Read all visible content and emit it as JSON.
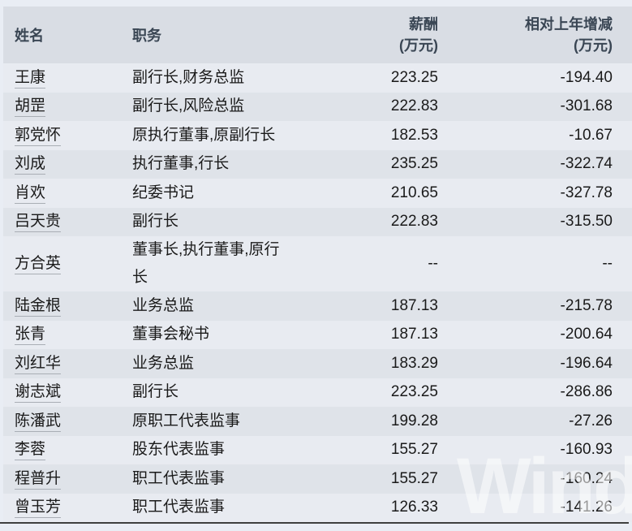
{
  "table": {
    "columns": {
      "name": "姓名",
      "position": "职务",
      "salary": "薪酬",
      "salary_unit": "(万元)",
      "change": "相对上年增减",
      "change_unit": "(万元)"
    },
    "rows": [
      {
        "name": "王康",
        "position": "副行长,财务总监",
        "salary": "223.25",
        "change": "-194.40"
      },
      {
        "name": "胡罡",
        "position": "副行长,风险总监",
        "salary": "222.83",
        "change": "-301.68"
      },
      {
        "name": "郭党怀",
        "position": "原执行董事,原副行长",
        "salary": "182.53",
        "change": "-10.67"
      },
      {
        "name": "刘成",
        "position": "执行董事,行长",
        "salary": "235.25",
        "change": "-322.74"
      },
      {
        "name": "肖欢",
        "position": "纪委书记",
        "salary": "210.65",
        "change": "-327.78"
      },
      {
        "name": "吕天贵",
        "position": "副行长",
        "salary": "222.83",
        "change": "-315.50"
      },
      {
        "name": "方合英",
        "position": "董事长,执行董事,原行长",
        "salary": "--",
        "change": "--"
      },
      {
        "name": "陆金根",
        "position": "业务总监",
        "salary": "187.13",
        "change": "-215.78"
      },
      {
        "name": "张青",
        "position": "董事会秘书",
        "salary": "187.13",
        "change": "-200.64"
      },
      {
        "name": "刘红华",
        "position": "业务总监",
        "salary": "183.29",
        "change": "-196.64"
      },
      {
        "name": "谢志斌",
        "position": "副行长",
        "salary": "223.25",
        "change": "-286.86"
      },
      {
        "name": "陈潘武",
        "position": "原职工代表监事",
        "salary": "199.28",
        "change": "-27.26"
      },
      {
        "name": "李蓉",
        "position": "股东代表监事",
        "salary": "155.27",
        "change": "-160.93"
      },
      {
        "name": "程普升",
        "position": "职工代表监事",
        "salary": "155.27",
        "change": "-160.24"
      },
      {
        "name": "曾玉芳",
        "position": "职工代表监事",
        "salary": "126.33",
        "change": "-141.26"
      }
    ]
  },
  "watermark": "Wind",
  "colors": {
    "page_bg": "#e9edf4",
    "header_bg": "#d9dde4",
    "row_light_bg": "#e8ebf1",
    "row_dark_bg": "#dfe3e9",
    "header_text": "#3a4654",
    "body_text": "#1a1a1a",
    "name_underline": "#a9aeb5",
    "bottom_border": "#3f3f3f",
    "watermark_color": "#ffffff"
  }
}
